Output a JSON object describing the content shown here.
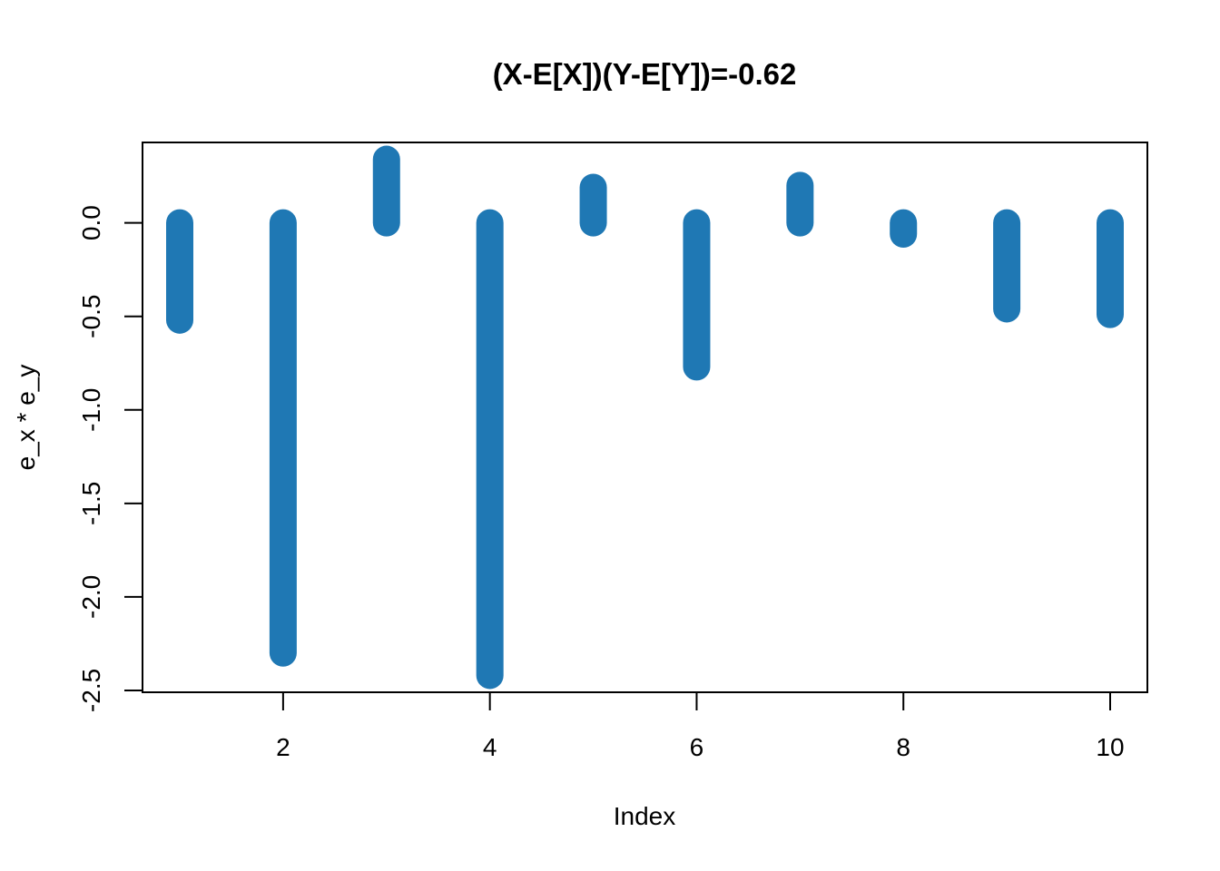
{
  "chart_data": {
    "type": "bar",
    "title": "(X-E[X])(Y-E[Y])=-0.62",
    "xlabel": "Index",
    "ylabel": "e_x * e_y",
    "x": [
      1,
      2,
      3,
      4,
      5,
      6,
      7,
      8,
      9,
      10
    ],
    "values": [
      -0.52,
      -2.3,
      0.34,
      -2.42,
      0.19,
      -0.77,
      0.2,
      -0.06,
      -0.46,
      -0.49
    ],
    "x_ticks": [
      2,
      4,
      6,
      8,
      10
    ],
    "x_tick_labels": [
      "2",
      "4",
      "6",
      "8",
      "10"
    ],
    "y_ticks": [
      0.0,
      -0.5,
      -1.0,
      -1.5,
      -2.0,
      -2.5
    ],
    "y_tick_labels": [
      "0.0",
      "-0.5",
      "-1.0",
      "-1.5",
      "-2.0",
      "-2.5"
    ],
    "xlim": [
      0.64,
      10.36
    ],
    "ylim": [
      -2.51,
      0.43
    ],
    "grid": false,
    "legend": "none",
    "colors": {
      "bar": "#1f78b4"
    }
  }
}
